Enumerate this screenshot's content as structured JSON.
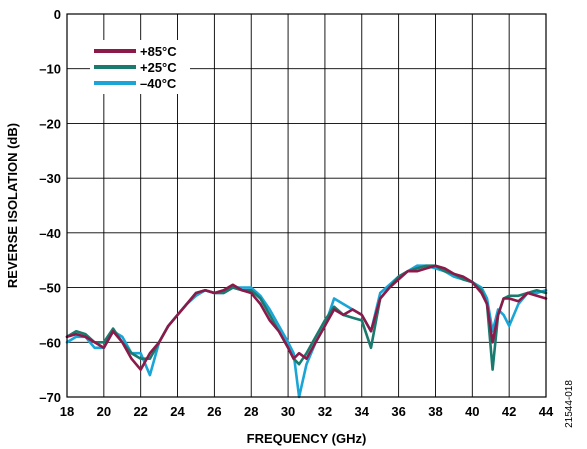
{
  "chart_data": {
    "type": "line",
    "xlabel": "FREQUENCY (GHz)",
    "ylabel": "REVERSE ISOLATION (dB)",
    "xlim": [
      18,
      44
    ],
    "ylim": [
      -70,
      0
    ],
    "x_ticks": [
      "18",
      "20",
      "22",
      "24",
      "26",
      "28",
      "30",
      "32",
      "34",
      "36",
      "38",
      "40",
      "42",
      "44"
    ],
    "y_ticks": [
      "0",
      "–10",
      "–20",
      "–30",
      "–40",
      "–50",
      "–60",
      "–70"
    ],
    "grid": true,
    "legend_position": "top-left",
    "figure_id": "21544-018",
    "series": [
      {
        "name": "+85°C",
        "color": "#8b1a4a",
        "x": [
          18,
          18.5,
          19,
          19.5,
          20,
          20.5,
          21,
          21.5,
          22,
          22.5,
          23,
          23.5,
          24,
          24.5,
          25,
          25.5,
          26,
          26.5,
          27,
          27.5,
          28,
          28.5,
          29,
          29.5,
          30,
          30.3,
          30.6,
          31,
          31.5,
          32,
          32.5,
          33,
          33.5,
          34,
          34.5,
          35,
          35.5,
          36,
          36.5,
          37,
          37.5,
          38,
          38.5,
          39,
          39.5,
          40,
          40.5,
          40.8,
          41.1,
          41.4,
          41.7,
          42,
          42.5,
          43,
          43.5,
          44
        ],
        "y": [
          -59,
          -58.5,
          -59,
          -60,
          -61,
          -58,
          -60,
          -63,
          -65,
          -62,
          -60,
          -57,
          -55,
          -53,
          -51,
          -50.5,
          -51,
          -50.5,
          -49.5,
          -50.5,
          -51,
          -53,
          -56,
          -58,
          -61,
          -63,
          -62,
          -63,
          -60,
          -57,
          -54,
          -55,
          -54,
          -55,
          -58,
          -52,
          -50,
          -48.5,
          -47,
          -47,
          -46.5,
          -46,
          -46.5,
          -47.5,
          -48,
          -49,
          -51,
          -53,
          -60,
          -55,
          -52,
          -52,
          -52.5,
          -51,
          -51.5,
          -52
        ]
      },
      {
        "name": "+25°C",
        "color": "#1a7a6e",
        "x": [
          18,
          18.5,
          19,
          19.5,
          20,
          20.5,
          21,
          21.5,
          22,
          22.5,
          23,
          23.5,
          24,
          24.5,
          25,
          25.5,
          26,
          26.5,
          27,
          27.5,
          28,
          28.5,
          29,
          29.5,
          30,
          30.3,
          30.6,
          31,
          31.5,
          32,
          32.5,
          33,
          33.5,
          34,
          34.5,
          35,
          35.5,
          36,
          36.5,
          37,
          37.5,
          38,
          38.5,
          39,
          39.5,
          40,
          40.5,
          40.8,
          41.1,
          41.4,
          41.7,
          42,
          42.5,
          43,
          43.5,
          44
        ],
        "y": [
          -59,
          -58,
          -58.5,
          -60,
          -60,
          -57.5,
          -60,
          -62,
          -63,
          -63,
          -60,
          -57,
          -55,
          -53,
          -51,
          -50.5,
          -51,
          -51,
          -50,
          -50.5,
          -50.5,
          -52,
          -55,
          -58,
          -61,
          -63,
          -64,
          -62,
          -59,
          -56,
          -53.5,
          -55,
          -55.5,
          -56,
          -61,
          -52,
          -50,
          -48,
          -47,
          -46.5,
          -46,
          -46,
          -47,
          -47.5,
          -48.5,
          -49,
          -50.5,
          -53,
          -65,
          -55,
          -52,
          -51.5,
          -51.5,
          -51,
          -50.5,
          -51
        ]
      },
      {
        "name": "–40°C",
        "color": "#1aa5d6",
        "x": [
          18,
          18.5,
          19,
          19.5,
          20,
          20.5,
          21,
          21.5,
          22,
          22.5,
          23,
          23.5,
          24,
          24.5,
          25,
          25.5,
          26,
          26.5,
          27,
          27.5,
          28,
          28.5,
          29,
          29.5,
          30,
          30.3,
          30.6,
          31,
          31.5,
          32,
          32.5,
          33,
          33.5,
          34,
          34.5,
          35,
          35.5,
          36,
          36.5,
          37,
          37.5,
          38,
          38.5,
          39,
          39.5,
          40,
          40.5,
          40.8,
          41.1,
          41.4,
          41.7,
          42,
          42.5,
          43,
          43.5,
          44
        ],
        "y": [
          -60,
          -59,
          -59,
          -61,
          -61,
          -58,
          -59,
          -62,
          -62,
          -66,
          -60,
          -57,
          -55,
          -53,
          -51.5,
          -50.5,
          -51,
          -51,
          -50,
          -50,
          -50,
          -51.5,
          -54,
          -57,
          -60,
          -62,
          -70,
          -64,
          -60,
          -57,
          -52,
          -53,
          -54,
          -55,
          -58,
          -51,
          -49.5,
          -48,
          -47,
          -46,
          -46,
          -46.5,
          -47,
          -48,
          -48.5,
          -49,
          -50,
          -52,
          -58,
          -54,
          -55,
          -57,
          -53,
          -51,
          -51,
          -50.5
        ]
      }
    ]
  }
}
